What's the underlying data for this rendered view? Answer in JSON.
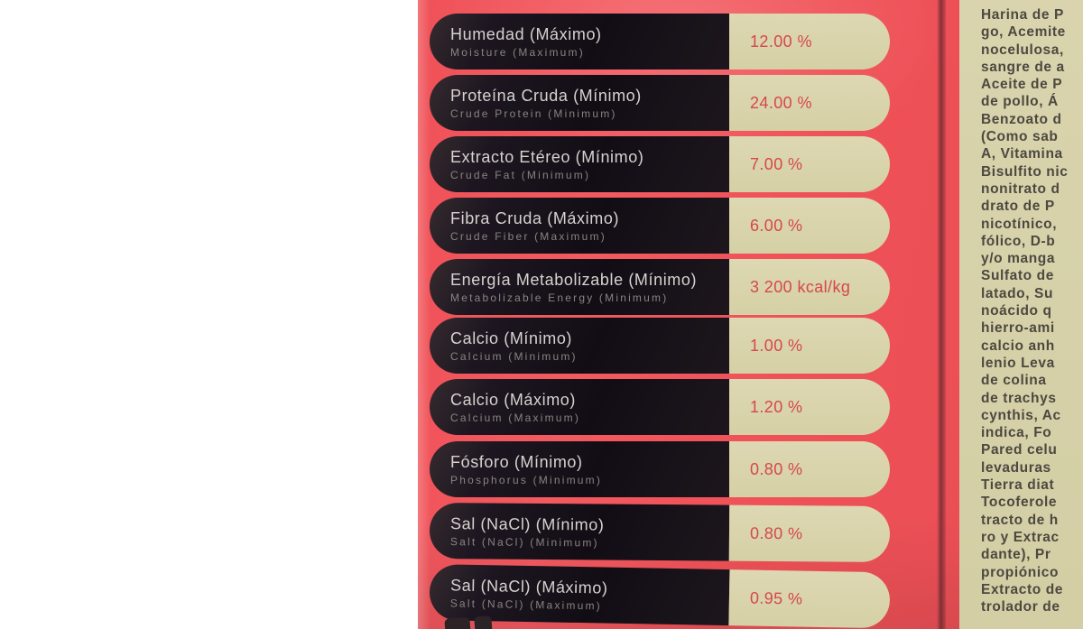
{
  "nutrition": {
    "rows": [
      {
        "es": "Humedad (Máximo)",
        "en": "Moisture (Maximum)",
        "value": "12.00 %"
      },
      {
        "es": "Proteína Cruda (Mínimo)",
        "en": "Crude Protein (Minimum)",
        "value": "24.00 %"
      },
      {
        "es": "Extracto Etéreo (Mínimo)",
        "en": "Crude Fat (Minimum)",
        "value": "7.00 %"
      },
      {
        "es": "Fibra Cruda (Máximo)",
        "en": "Crude Fiber (Maximum)",
        "value": "6.00 %"
      },
      {
        "es": "Energía Metabolizable (Mínimo)",
        "en": "Metabolizable Energy (Minimum)",
        "value": "3 200 kcal/kg"
      },
      {
        "es": "Calcio (Mínimo)",
        "en": "Calcium (Minimum)",
        "value": "1.00 %"
      },
      {
        "es": "Calcio (Máximo)",
        "en": "Calcium (Maximum)",
        "value": "1.20 %"
      },
      {
        "es": "Fósforo (Mínimo)",
        "en": "Phosphorus (Minimum)",
        "value": "0.80 %"
      },
      {
        "es": "Sal (NaCl) (Mínimo)",
        "en": "Salt (NaCl) (Minimum)",
        "value": "0.80 %"
      },
      {
        "es": "Sal (NaCl) (Máximo)",
        "en": "Salt (NaCl) (Maximum)",
        "value": "0.95 %"
      }
    ]
  },
  "ingredients": {
    "lines": [
      "Harina de P",
      "go, Acemite",
      "nocelulosa,",
      "sangre de a",
      "Aceite de P",
      "de pollo, Á",
      "Benzoato d",
      "(Como sab",
      "A, Vitamina",
      "Bisulfito nic",
      "nonitrato d",
      "drato de P",
      "nicotínico,",
      "fólico, D-b",
      "y/o manga",
      "Sulfato de",
      "latado, Su",
      "noácido q",
      "hierro-ami",
      "calcio anh",
      "lenio Leva",
      "de colina",
      "de trachys",
      "cynthis, Ac",
      "indica, Fo",
      "Pared celu",
      "levaduras",
      "Tierra diat",
      "Tocoferole",
      "tracto de h",
      "ro y Extrac",
      "dante), Pr",
      "propiónico",
      "Extracto de",
      "trolador de"
    ]
  },
  "colors": {
    "bag_red": "#ef5157",
    "pill_black": "#17121a",
    "pill_beige": "#d8d3ab",
    "value_red": "#d6474c",
    "label_text": "#d7d2cf",
    "sublabel_text": "#8a8380",
    "ingredients_text": "#4d4840"
  }
}
